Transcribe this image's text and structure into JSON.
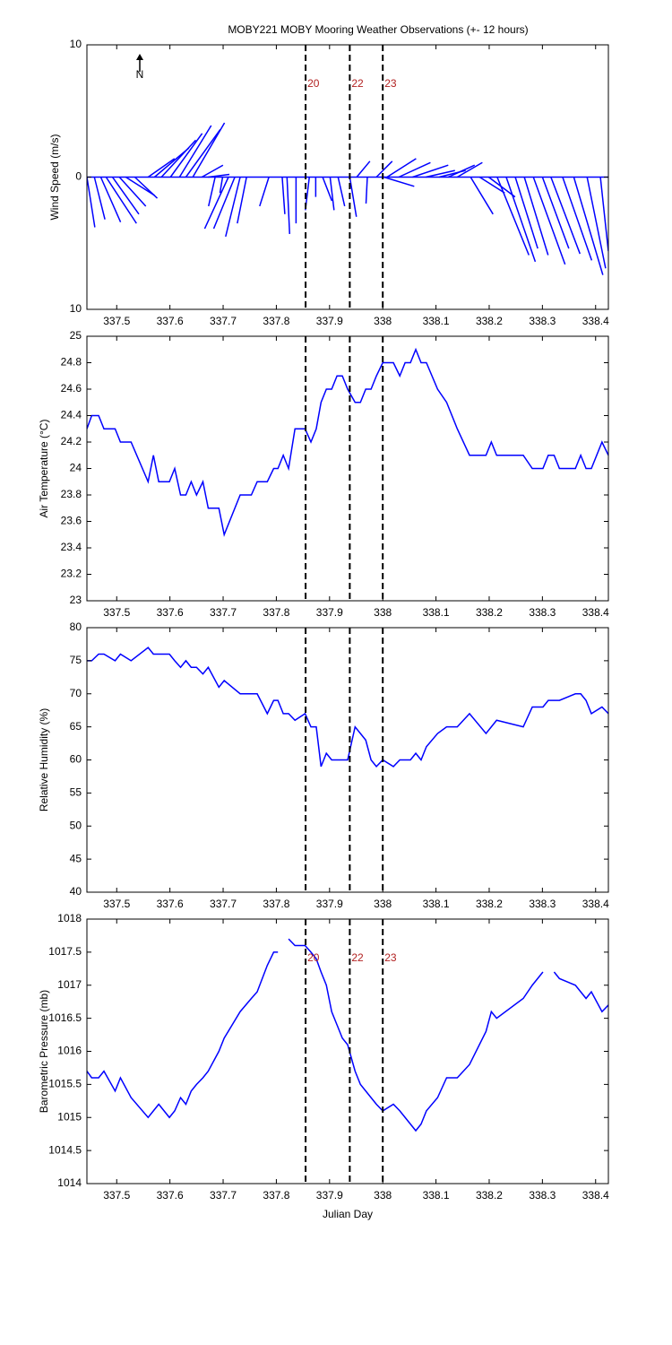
{
  "chart_data": [
    {
      "type": "stick",
      "title": "MOBY221 MOBY Mooring Weather Observations (+- 12 hours)",
      "ylabel": "Wind Speed (m/s)",
      "north_label": "N",
      "xlim": [
        337.444,
        338.424
      ],
      "xticks": [
        337.5,
        337.6,
        337.7,
        337.8,
        337.9,
        338,
        338.1,
        338.2,
        338.3,
        338.4
      ],
      "ylim": [
        -10,
        10
      ],
      "yticks": [
        {
          "value": -10,
          "label": "10"
        },
        0,
        10
      ],
      "vlines": [
        {
          "x": 337.855,
          "label": "20"
        },
        {
          "x": 337.938,
          "label": "22"
        },
        {
          "x": 338.0,
          "label": "23"
        }
      ],
      "series": [
        {
          "color": "#0000ff",
          "x": [
            337.444,
            337.458,
            337.47,
            337.48,
            337.492,
            337.505,
            337.517,
            337.534,
            337.559,
            337.571,
            337.584,
            337.601,
            337.618,
            337.63,
            337.643,
            337.66,
            337.672,
            337.685,
            337.699,
            337.71,
            337.722,
            337.732,
            337.744,
            337.786,
            337.811,
            337.82,
            337.837,
            337.862,
            337.874,
            337.887,
            337.901,
            337.916,
            337.938,
            337.951,
            337.971,
            337.988,
            338.002,
            338.008,
            338.03,
            338.056,
            338.081,
            338.106,
            338.123,
            338.14,
            338.165,
            338.182,
            338.199,
            338.215,
            338.232,
            338.249,
            338.266,
            338.283,
            338.3,
            338.316,
            338.338,
            338.359,
            338.384,
            338.409
          ],
          "u": [
            0.6,
            0.8,
            1.5,
            2.3,
            2.0,
            2.0,
            2.2,
            1.7,
            2.0,
            2.6,
            2.6,
            2.4,
            2.4,
            2.6,
            2.4,
            1.6,
            1.6,
            -0.5,
            -0.2,
            -1.8,
            -1.6,
            -1.1,
            -0.7,
            -0.7,
            0.2,
            0.2,
            0,
            -0.3,
            0,
            0.7,
            0.3,
            0.5,
            0.5,
            1.0,
            -0.1,
            1.2,
            2.3,
            2.2,
            2.4,
            2.7,
            2.2,
            2.0,
            2.0,
            1.9,
            1.7,
            1.9,
            2.0,
            2.4,
            2.2,
            1.7,
            1.8,
            2.4,
            2.0,
            2.2,
            2.2,
            2.2,
            1.4,
            0.6
          ],
          "v": [
            -3.8,
            -3.2,
            -3.4,
            -3.5,
            -2.8,
            -2.2,
            -1.4,
            -1.6,
            1.4,
            2.2,
            2.8,
            3.3,
            3.9,
            3.6,
            4.1,
            0.9,
            0.2,
            -2.2,
            -1.2,
            -3.9,
            -3.9,
            -4.5,
            -3.5,
            -2.2,
            -2.8,
            -4.3,
            -3.5,
            -2.5,
            -1.5,
            -1.8,
            -2.5,
            -2.2,
            -3.0,
            1.2,
            -2.0,
            1.2,
            -0.7,
            1.4,
            1.1,
            0.9,
            0.5,
            0.5,
            0.9,
            1.1,
            -2.8,
            -1.2,
            -1.5,
            -5.9,
            -6.4,
            -5.4,
            -5.9,
            -6.6,
            -5.4,
            -5.8,
            -6.3,
            -7.4,
            -6.9,
            -5.6
          ]
        }
      ]
    },
    {
      "type": "line",
      "ylabel": "Air Temperature (°C)",
      "xlim": [
        337.444,
        338.424
      ],
      "xticks": [
        337.5,
        337.6,
        337.7,
        337.8,
        337.9,
        338,
        338.1,
        338.2,
        338.3,
        338.4
      ],
      "ylim": [
        23,
        25
      ],
      "yticks": [
        23,
        23.2,
        23.4,
        23.6,
        23.8,
        24,
        24.2,
        24.4,
        24.6,
        24.8,
        25
      ],
      "vlines": [
        {
          "x": 337.855
        },
        {
          "x": 337.938
        },
        {
          "x": 338.0
        }
      ],
      "x": [
        337.444,
        337.453,
        337.466,
        337.476,
        337.497,
        337.507,
        337.527,
        337.559,
        337.569,
        337.579,
        337.599,
        337.609,
        337.62,
        337.63,
        337.64,
        337.65,
        337.662,
        337.672,
        337.692,
        337.702,
        337.732,
        337.753,
        337.764,
        337.783,
        337.795,
        337.803,
        337.813,
        337.823,
        337.835,
        337.854,
        337.865,
        337.875,
        337.884,
        337.894,
        337.904,
        337.914,
        337.924,
        337.934,
        337.948,
        337.958,
        337.968,
        337.978,
        337.988,
        338.0,
        338.02,
        338.032,
        338.042,
        338.052,
        338.062,
        338.072,
        338.082,
        338.103,
        338.12,
        338.14,
        338.163,
        338.194,
        338.204,
        338.214,
        338.264,
        338.281,
        338.301,
        338.311,
        338.322,
        338.332,
        338.362,
        338.372,
        338.382,
        338.392,
        338.412,
        338.424
      ],
      "series": [
        {
          "color": "#0000ff",
          "values": [
            24.3,
            24.4,
            24.4,
            24.3,
            24.3,
            24.2,
            24.2,
            23.9,
            24.1,
            23.9,
            23.9,
            24.0,
            23.8,
            23.8,
            23.9,
            23.8,
            23.9,
            23.7,
            23.7,
            23.5,
            23.8,
            23.8,
            23.9,
            23.9,
            24.0,
            24.0,
            24.1,
            24.0,
            24.3,
            24.3,
            24.2,
            24.3,
            24.5,
            24.6,
            24.6,
            24.7,
            24.7,
            24.6,
            24.5,
            24.5,
            24.6,
            24.6,
            24.7,
            24.8,
            24.8,
            24.7,
            24.8,
            24.8,
            24.9,
            24.8,
            24.8,
            24.6,
            24.5,
            24.3,
            24.1,
            24.1,
            24.2,
            24.1,
            24.1,
            24.0,
            24.0,
            24.1,
            24.1,
            24.0,
            24.0,
            24.1,
            24.0,
            24.0,
            24.2,
            24.1
          ]
        }
      ]
    },
    {
      "type": "line",
      "ylabel": "Relative Humidity (%)",
      "xlim": [
        337.444,
        338.424
      ],
      "xticks": [
        337.5,
        337.6,
        337.7,
        337.8,
        337.9,
        338,
        338.1,
        338.2,
        338.3,
        338.4
      ],
      "ylim": [
        40,
        80
      ],
      "yticks": [
        40,
        45,
        50,
        55,
        60,
        65,
        70,
        75,
        80
      ],
      "vlines": [
        {
          "x": 337.855
        },
        {
          "x": 337.938
        },
        {
          "x": 338.0
        }
      ],
      "x": [
        337.444,
        337.453,
        337.466,
        337.476,
        337.497,
        337.507,
        337.527,
        337.559,
        337.569,
        337.579,
        337.599,
        337.609,
        337.62,
        337.63,
        337.64,
        337.65,
        337.662,
        337.672,
        337.692,
        337.702,
        337.732,
        337.753,
        337.764,
        337.783,
        337.795,
        337.803,
        337.813,
        337.823,
        337.835,
        337.854,
        337.865,
        337.875,
        337.884,
        337.894,
        337.904,
        337.914,
        337.924,
        337.934,
        337.948,
        337.958,
        337.968,
        337.978,
        337.988,
        338.0,
        338.02,
        338.032,
        338.042,
        338.052,
        338.062,
        338.072,
        338.082,
        338.103,
        338.12,
        338.14,
        338.163,
        338.194,
        338.204,
        338.214,
        338.264,
        338.281,
        338.301,
        338.311,
        338.322,
        338.332,
        338.362,
        338.372,
        338.382,
        338.392,
        338.412,
        338.424
      ],
      "series": [
        {
          "color": "#0000ff",
          "values": [
            75,
            75,
            76,
            76,
            75,
            76,
            75,
            77,
            76,
            76,
            76,
            75,
            74,
            75,
            74,
            74,
            73,
            74,
            71,
            72,
            70,
            70,
            70,
            67,
            69,
            69,
            67,
            67,
            66,
            67,
            65,
            65,
            59,
            61,
            60,
            60,
            60,
            60,
            65,
            64,
            63,
            60,
            59,
            60,
            59,
            60,
            60,
            60,
            61,
            60,
            62,
            64,
            65,
            65,
            67,
            64,
            65,
            66,
            65,
            68,
            68,
            69,
            69,
            69,
            70,
            70,
            69,
            67,
            68,
            67
          ]
        }
      ]
    },
    {
      "type": "line",
      "ylabel": "Barometric Pressure (mb)",
      "xlabel": "Julian Day",
      "xlim": [
        337.444,
        338.424
      ],
      "xticks": [
        337.5,
        337.6,
        337.7,
        337.8,
        337.9,
        338,
        338.1,
        338.2,
        338.3,
        338.4
      ],
      "ylim": [
        1014,
        1018
      ],
      "yticks": [
        1014,
        1014.5,
        1015,
        1015.5,
        1016,
        1016.5,
        1017,
        1017.5,
        1018
      ],
      "vlines": [
        {
          "x": 337.855,
          "label": "20"
        },
        {
          "x": 337.938,
          "label": "22"
        },
        {
          "x": 338.0,
          "label": "23"
        }
      ],
      "x": [
        337.444,
        337.453,
        337.466,
        337.476,
        337.497,
        337.507,
        337.527,
        337.559,
        337.569,
        337.579,
        337.599,
        337.609,
        337.62,
        337.63,
        337.64,
        337.65,
        337.662,
        337.672,
        337.692,
        337.702,
        337.732,
        337.753,
        337.764,
        337.783,
        337.795,
        337.803,
        337.813,
        337.823,
        337.835,
        337.854,
        337.865,
        337.875,
        337.884,
        337.894,
        337.904,
        337.914,
        337.924,
        337.934,
        337.948,
        337.958,
        337.968,
        337.978,
        337.988,
        338.0,
        338.02,
        338.032,
        338.042,
        338.052,
        338.062,
        338.072,
        338.082,
        338.103,
        338.12,
        338.14,
        338.163,
        338.194,
        338.204,
        338.214,
        338.264,
        338.281,
        338.301,
        338.311,
        338.322,
        338.332,
        338.362,
        338.372,
        338.382,
        338.392,
        338.412,
        338.424
      ],
      "series": [
        {
          "color": "#0000ff",
          "values": [
            1015.7,
            1015.6,
            1015.6,
            1015.7,
            1015.4,
            1015.6,
            1015.3,
            1015.0,
            1015.1,
            1015.2,
            1015.0,
            1015.1,
            1015.3,
            1015.2,
            1015.4,
            1015.5,
            1015.6,
            1015.7,
            1016.0,
            1016.2,
            1016.6,
            1016.8,
            1016.9,
            1017.3,
            1017.5,
            1017.5,
            null,
            1017.7,
            1017.6,
            1017.6,
            1017.5,
            1017.4,
            1017.2,
            1017.0,
            1016.6,
            1016.4,
            1016.2,
            1016.1,
            1015.7,
            1015.5,
            1015.4,
            1015.3,
            1015.2,
            1015.1,
            1015.2,
            1015.1,
            1015.0,
            1014.9,
            1014.8,
            1014.9,
            1015.1,
            1015.3,
            1015.6,
            1015.6,
            1015.8,
            1016.3,
            1016.6,
            1016.5,
            1016.8,
            1017.0,
            1017.2,
            null,
            1017.2,
            1017.1,
            1017.0,
            1016.9,
            1016.8,
            1016.9,
            1016.6,
            1016.7
          ]
        }
      ]
    }
  ]
}
